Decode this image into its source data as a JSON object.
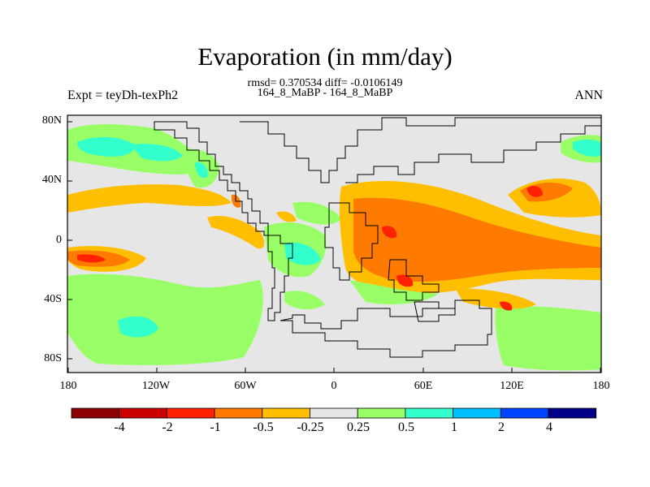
{
  "header": {
    "title": "Evaporation (in mm/day)",
    "stats": "rmsd= 0.370534 diff= -0.0106149",
    "cases": "164_8_MaBP - 164_8_MaBP",
    "left_label": "Expt = teyDh-texPh2",
    "right_label": "ANN"
  },
  "axes": {
    "y_ticks": [
      "80N",
      "40N",
      "0",
      "40S",
      "80S"
    ],
    "x_ticks": [
      "180",
      "120W",
      "60W",
      "0",
      "60E",
      "120E",
      "180"
    ]
  },
  "colorbar": {
    "colors": [
      "#8b0000",
      "#cc0000",
      "#ff2200",
      "#ff7a00",
      "#ffbf00",
      "#e6e6e6",
      "#99ff66",
      "#33ffcc",
      "#00bfff",
      "#0044ff",
      "#000088"
    ],
    "labels": [
      "-4",
      "-2",
      "-1",
      "-0.5",
      "-0.25",
      "0.25",
      "0.5",
      "1",
      "2",
      "4"
    ]
  }
}
